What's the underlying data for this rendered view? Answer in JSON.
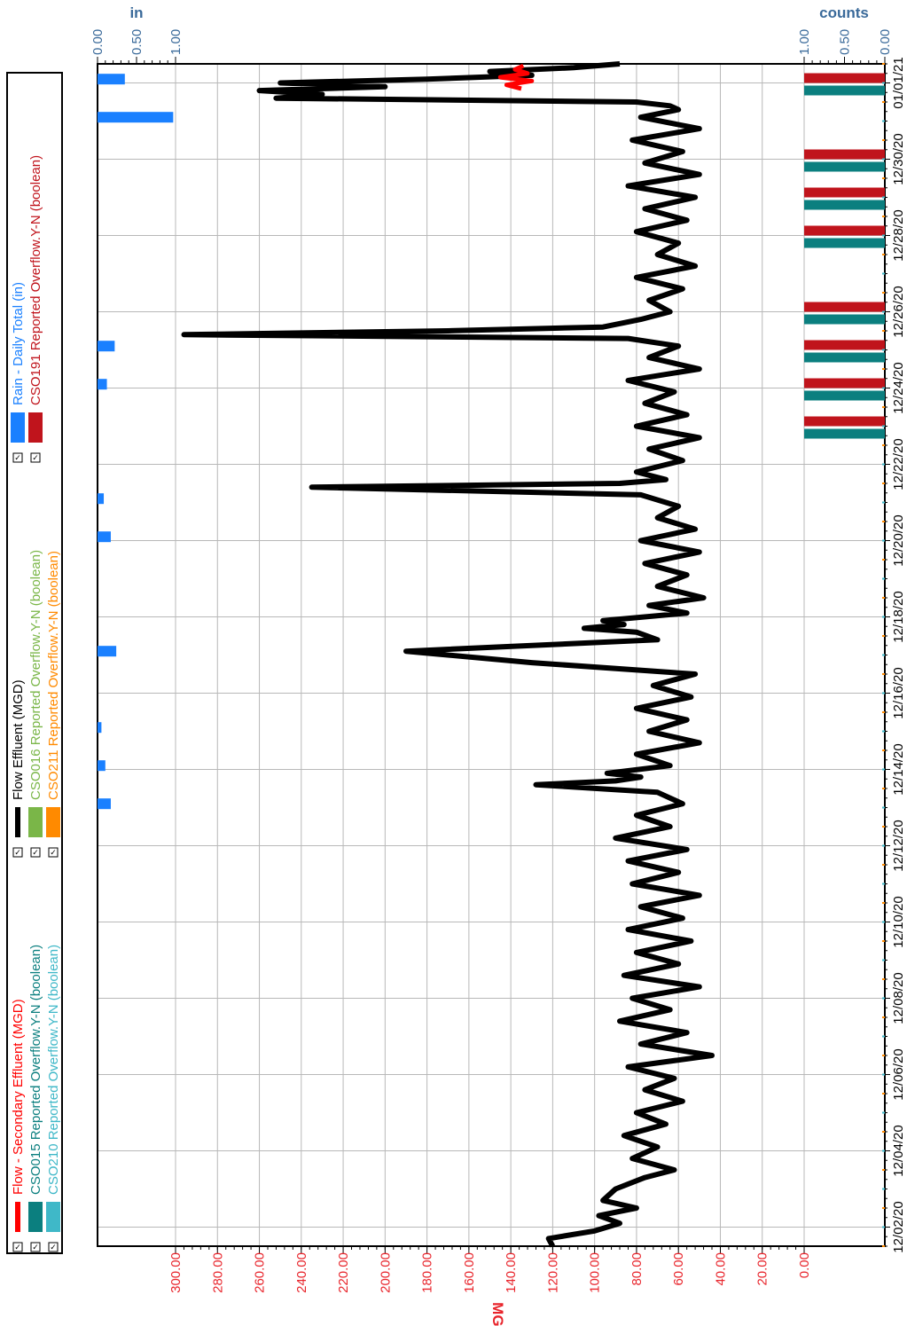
{
  "chart_data": {
    "type": "line",
    "rotated": "90-degrees-clockwise",
    "x_axis": {
      "ticks": [
        "12/02/20",
        "12/04/20",
        "12/06/20",
        "12/08/20",
        "12/10/20",
        "12/12/20",
        "12/14/20",
        "12/16/20",
        "12/18/20",
        "12/20/20",
        "12/22/20",
        "12/24/20",
        "12/26/20",
        "12/28/20",
        "12/30/20",
        "01/01/21"
      ],
      "range_days": [
        0,
        31
      ]
    },
    "y_left": {
      "title": "MGD",
      "range": [
        0,
        300
      ],
      "ticks": [
        "0.00",
        "20.00",
        "40.00",
        "60.00",
        "80.00",
        "100.00",
        "120.00",
        "140.00",
        "160.00",
        "180.00",
        "200.00",
        "220.00",
        "240.00",
        "260.00",
        "280.00",
        "300.00"
      ],
      "color": "#e8242b"
    },
    "y_rain": {
      "title": "in",
      "range": [
        0,
        1
      ],
      "ticks": [
        "0.00",
        "0.50",
        "1.00"
      ],
      "color": "#3a6a9a"
    },
    "y_counts": {
      "title": "counts",
      "range": [
        0,
        1
      ],
      "ticks": [
        "0.00",
        "0.50",
        "1.00"
      ],
      "color": "#3a6a9a"
    },
    "grid": true,
    "legend_position": "left",
    "legend": [
      {
        "label": "Flow - Secondary Effluent (MGD)",
        "color": "#ff0000",
        "kind": "line"
      },
      {
        "label": "Flow Effluent (MGD)",
        "color": "#000000",
        "kind": "line"
      },
      {
        "label": "Rain - Daily Total (in)",
        "color": "#1a80ff",
        "kind": "bar"
      },
      {
        "label": "CSO015 Reported Overflow.Y-N (boolean)",
        "color": "#0b7f7f",
        "kind": "bar"
      },
      {
        "label": "CSO016 Reported Overflow.Y-N (boolean)",
        "color": "#7ab648",
        "kind": "bar"
      },
      {
        "label": "CSO191 Reported Overflow.Y-N (boolean)",
        "color": "#c0141c",
        "kind": "bar"
      },
      {
        "label": "CSO210 Reported Overflow.Y-N (boolean)",
        "color": "#3fb8c8",
        "kind": "bar"
      },
      {
        "label": "CSO211 Reported Overflow.Y-N (boolean)",
        "color": "#ff8a00",
        "kind": "bar"
      }
    ],
    "series": [
      {
        "name": "Flow Effluent (MGD)",
        "color": "#000000",
        "x_days": [
          0,
          0.2,
          0.4,
          0.6,
          0.8,
          1.0,
          1.2,
          1.5,
          1.8,
          2.0,
          2.3,
          2.6,
          2.9,
          3.2,
          3.5,
          3.8,
          4.1,
          4.4,
          4.7,
          5.0,
          5.3,
          5.6,
          5.9,
          6.2,
          6.5,
          6.8,
          7.1,
          7.4,
          7.7,
          8.0,
          8.3,
          8.6,
          8.9,
          9.2,
          9.5,
          9.8,
          10.1,
          10.4,
          10.7,
          11.0,
          11.3,
          11.6,
          11.9,
          12.1,
          12.2,
          12.3,
          12.4,
          12.6,
          12.9,
          13.2,
          13.5,
          13.8,
          14.1,
          14.4,
          14.7,
          15.0,
          15.3,
          15.6,
          15.9,
          16.1,
          16.2,
          16.3,
          16.4,
          16.6,
          16.8,
          17.0,
          17.3,
          17.6,
          17.9,
          18.2,
          18.5,
          18.8,
          19.1,
          19.4,
          19.7,
          19.9,
          20.0,
          20.1,
          20.3,
          20.6,
          20.9,
          21.2,
          21.5,
          21.8,
          22.1,
          22.4,
          22.7,
          23.0,
          23.3,
          23.6,
          23.8,
          23.9,
          24.0,
          24.1,
          24.3,
          24.5,
          24.8,
          25.1,
          25.4,
          25.7,
          26.0,
          26.3,
          26.6,
          26.9,
          27.2,
          27.5,
          27.8,
          28.1,
          28.4,
          28.7,
          29.0,
          29.3,
          29.6,
          29.8,
          29.9,
          30.0,
          30.1,
          30.2,
          30.3,
          30.4,
          30.5,
          30.6,
          30.7,
          30.8,
          30.9,
          31.0
        ],
        "y": [
          120,
          122,
          100,
          88,
          98,
          80,
          96,
          90,
          76,
          62,
          82,
          70,
          86,
          66,
          80,
          58,
          76,
          62,
          84,
          44,
          78,
          56,
          88,
          64,
          82,
          50,
          86,
          60,
          80,
          54,
          84,
          58,
          78,
          50,
          82,
          60,
          84,
          56,
          90,
          64,
          80,
          58,
          70,
          128,
          90,
          78,
          94,
          64,
          80,
          50,
          74,
          56,
          80,
          54,
          72,
          52,
          130,
          190,
          70,
          80,
          105,
          86,
          96,
          56,
          74,
          48,
          70,
          56,
          76,
          50,
          78,
          52,
          70,
          60,
          78,
          235,
          88,
          66,
          80,
          58,
          74,
          50,
          80,
          56,
          76,
          62,
          84,
          50,
          74,
          60,
          84,
          296,
          170,
          96,
          78,
          64,
          74,
          58,
          80,
          52,
          70,
          60,
          80,
          56,
          76,
          52,
          84,
          50,
          76,
          58,
          82,
          50,
          78,
          60,
          64,
          80,
          252,
          230,
          260,
          200,
          250,
          180,
          130,
          150,
          110,
          88
        ],
        "spikes_note": ""
      },
      {
        "name": "Flow - Secondary Effluent (MGD)",
        "color": "#ff0000",
        "x_days": [
          30.35,
          30.45,
          30.55,
          30.65,
          30.75,
          30.85,
          30.95
        ],
        "y": [
          135,
          142,
          130,
          145,
          132,
          138,
          134
        ]
      }
    ],
    "rain_daily_in": [
      {
        "day": 11.6,
        "value": 0.17
      },
      {
        "day": 12.6,
        "value": 0.1
      },
      {
        "day": 13.6,
        "value": 0.05
      },
      {
        "day": 15.6,
        "value": 0.24
      },
      {
        "day": 18.6,
        "value": 0.17
      },
      {
        "day": 19.6,
        "value": 0.08
      },
      {
        "day": 22.6,
        "value": 0.12
      },
      {
        "day": 23.6,
        "value": 0.22
      },
      {
        "day": 29.6,
        "value": 0.97
      },
      {
        "day": 30.6,
        "value": 0.35
      }
    ],
    "cso_counts": [
      {
        "series": "CSO191 Reported Overflow.Y-N (boolean)",
        "days": [
          22,
          23,
          24,
          25,
          27,
          28,
          29,
          31
        ],
        "value": 1
      },
      {
        "series": "CSO015 Reported Overflow.Y-N (boolean)",
        "days": [
          22,
          23,
          24,
          25,
          27,
          28,
          29,
          31
        ],
        "value": 1
      }
    ]
  },
  "legend_check": "✓"
}
